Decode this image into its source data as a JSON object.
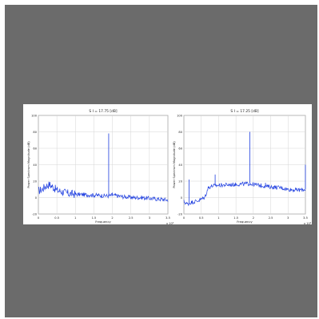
{
  "chart_data": [
    {
      "type": "line",
      "title": "S I = 17.75 [dB]",
      "xlabel": "Frequency",
      "ylabel": "Power Spectrum Magnitude (dB)",
      "x_exponent_label": "x 10⁴",
      "xlim": [
        0,
        3.5
      ],
      "ylim": [
        -20,
        100
      ],
      "xticks": [
        0,
        0.5,
        1,
        1.5,
        2,
        2.5,
        3,
        3.5
      ],
      "xtick_labels": [
        "0",
        "0.5",
        "1",
        "1.5",
        "2",
        "2.5",
        "3",
        "3.5"
      ],
      "yticks": [
        -20,
        0,
        20,
        40,
        60,
        80,
        100
      ],
      "grid": true,
      "color": "#1f3fe0",
      "series": [
        {
          "points": [
            [
              0,
              8
            ],
            [
              0.1,
              10
            ],
            [
              0.2,
              14
            ],
            [
              0.3,
              16
            ],
            [
              0.5,
              9
            ],
            [
              0.8,
              5
            ],
            [
              1.0,
              4
            ],
            [
              1.5,
              3
            ],
            [
              1.9,
              2
            ],
            [
              2.0,
              3
            ],
            [
              2.3,
              1
            ],
            [
              2.6,
              0
            ],
            [
              2.8,
              0
            ],
            [
              3.0,
              -1
            ],
            [
              3.3,
              -2
            ],
            [
              3.5,
              -3
            ]
          ],
          "spikes": [
            [
              1.9,
              78
            ],
            [
              2.0,
              6
            ]
          ]
        }
      ]
    },
    {
      "type": "line",
      "title": "S I = 17.25 [dB]",
      "xlabel": "Frequency",
      "ylabel": "Power Spectrum Magnitude (dB)",
      "x_exponent_label": "x 10⁴",
      "xlim": [
        0,
        3.5
      ],
      "ylim": [
        -20,
        100
      ],
      "xticks": [
        0,
        0.5,
        1,
        1.5,
        2,
        2.5,
        3,
        3.5
      ],
      "xtick_labels": [
        "0",
        "0.5",
        "1",
        "1.5",
        "2",
        "2.5",
        "3",
        "3.5"
      ],
      "yticks": [
        -20,
        0,
        20,
        40,
        60,
        80,
        100
      ],
      "grid": true,
      "color": "#1f3fe0",
      "series": [
        {
          "points": [
            [
              0,
              -5
            ],
            [
              0.1,
              -8
            ],
            [
              0.2,
              -6
            ],
            [
              0.4,
              -4
            ],
            [
              0.6,
              0
            ],
            [
              0.7,
              12
            ],
            [
              0.8,
              14
            ],
            [
              1.0,
              15
            ],
            [
              1.5,
              16
            ],
            [
              1.9,
              17
            ],
            [
              2.0,
              16
            ],
            [
              2.5,
              13
            ],
            [
              2.8,
              12
            ],
            [
              3.0,
              10
            ],
            [
              3.3,
              9
            ],
            [
              3.5,
              10
            ]
          ],
          "spikes": [
            [
              0.15,
              22
            ],
            [
              0.9,
              28
            ],
            [
              1.9,
              80
            ],
            [
              2.35,
              18
            ],
            [
              3.5,
              40
            ]
          ]
        }
      ]
    }
  ]
}
